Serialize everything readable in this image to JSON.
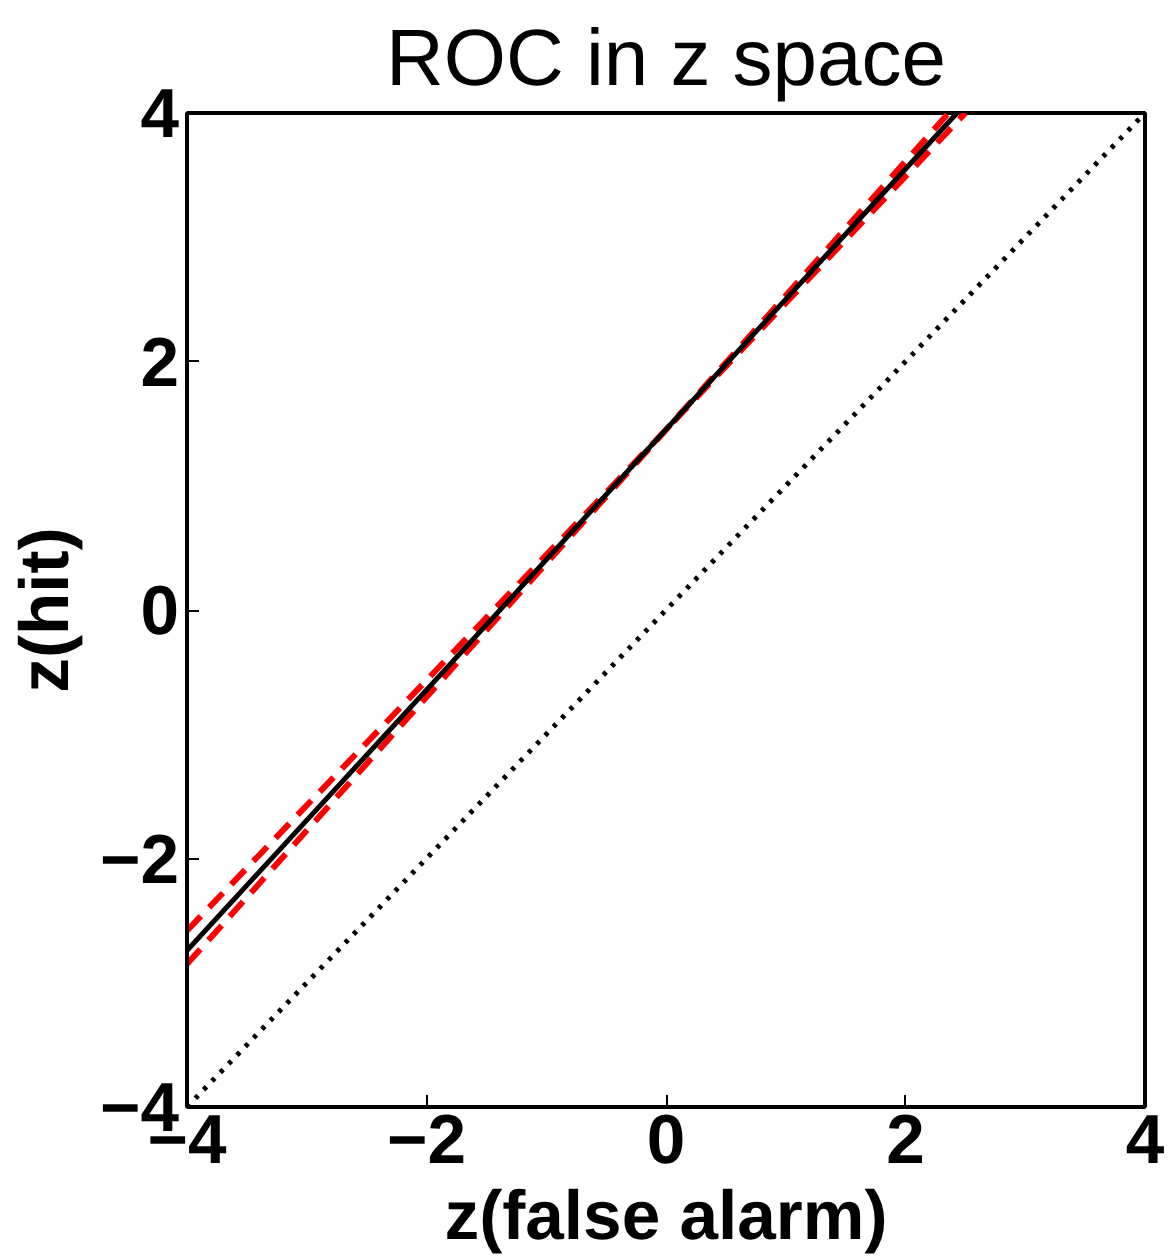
{
  "chart_data": {
    "type": "line",
    "title": "ROC in z space",
    "xlabel": "z(false alarm)",
    "ylabel": "z(hit)",
    "xlim": [
      -4,
      4
    ],
    "ylim": [
      -4,
      4
    ],
    "xticks": [
      -4,
      -2,
      0,
      2,
      4
    ],
    "yticks": [
      -4,
      -2,
      0,
      2,
      4
    ],
    "grid": false,
    "series": [
      {
        "x": [
          -4,
          4
        ],
        "values": [
          -4,
          4
        ],
        "color": "#000000",
        "line_style": "dotted"
      },
      {
        "x": [
          -4,
          0,
          2.5
        ],
        "values": [
          -2.58,
          1.45,
          4
        ],
        "color": "#ff0000",
        "line_style": "dashed"
      },
      {
        "x": [
          -4,
          0,
          2.36
        ],
        "values": [
          -2.85,
          1.45,
          4
        ],
        "color": "#ff0000",
        "line_style": "dashed"
      },
      {
        "x": [
          -4,
          2.43
        ],
        "values": [
          -2.74,
          4
        ],
        "color": "#000000",
        "line_style": "solid"
      }
    ]
  }
}
